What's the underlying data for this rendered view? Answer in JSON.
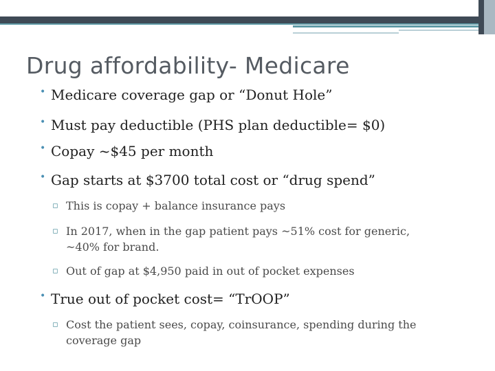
{
  "slide": {
    "title": "Drug affordability- Medicare",
    "bullets": [
      {
        "text": "Medicare coverage gap or “Donut Hole”"
      },
      {
        "text": "Must pay deductible (PHS plan deductible= $0)"
      },
      {
        "text": "Copay ~$45 per month"
      },
      {
        "text": "Gap starts at $3700 total cost or “drug spend”",
        "sub": [
          "This is copay + balance insurance pays",
          "In 2017, when in the gap patient pays ~51% cost for generic,\n~40% for brand.",
          "Out of gap at $4,950 paid in out of pocket expenses"
        ]
      },
      {
        "text": "True out of pocket cost= “TrOOP”",
        "sub": [
          "Cost the patient sees, copay, coinsurance, spending during the\ncoverage gap"
        ]
      }
    ]
  },
  "markers": {
    "level1": "•",
    "level2": "▫"
  },
  "colors": {
    "title": "#555b62",
    "header_dark": "#3f4a56",
    "accent_teal": "#5f9aa6",
    "bullet": "#4a8fb3"
  }
}
